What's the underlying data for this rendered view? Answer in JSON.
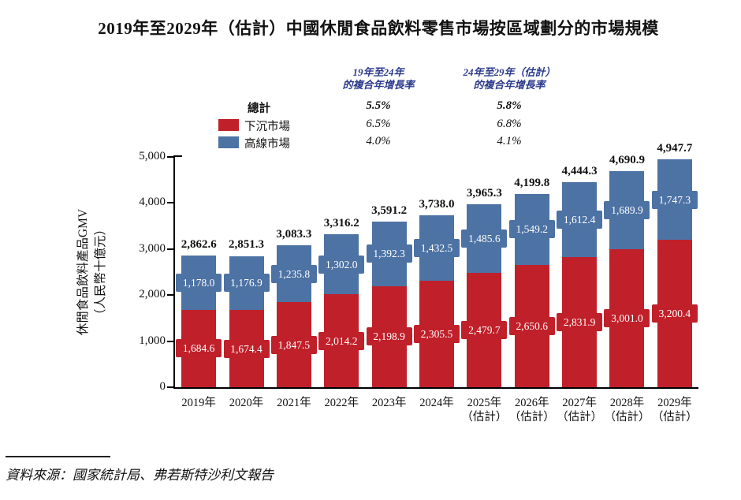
{
  "title": "2019年至2029年（估計）中國休閒食品飲料零售市場按區域劃分的市場規模",
  "colors": {
    "lower": "#C0202A",
    "upper": "#4D72A4",
    "header_navy": "#2B3A8C",
    "axis": "#000000"
  },
  "cagr_table": {
    "col1_header_line1": "19年至24年",
    "col1_header_line2": "的複合年增長率",
    "col2_header_line1": "24年至29年（估計）",
    "col2_header_line2": "的複合年增長率",
    "rows": [
      {
        "label": "總計",
        "cagr_19_24": "5.5%",
        "cagr_24_29": "5.8%"
      },
      {
        "label": "下沉市場",
        "cagr_19_24": "6.5%",
        "cagr_24_29": "6.8%"
      },
      {
        "label": "高線市場",
        "cagr_19_24": "4.0%",
        "cagr_24_29": "4.1%"
      }
    ]
  },
  "chart_data": {
    "type": "bar",
    "stacked": true,
    "title": "2019年至2029年（估計）中國休閒食品飲料零售市場按區域劃分的市場規模",
    "ylabel_line1": "休閒食品飲料產品GMV",
    "ylabel_line2": "（人民幣十億元）",
    "ylim": [
      0,
      5000
    ],
    "ytick_labels": [
      "5,000",
      "4,000",
      "3,000",
      "2,000",
      "1,000",
      "0"
    ],
    "grid": false,
    "legend_position": "top-left",
    "categories": [
      "2019年",
      "2020年",
      "2021年",
      "2022年",
      "2023年",
      "2024年",
      "2025年",
      "2026年",
      "2027年",
      "2028年",
      "2029年"
    ],
    "category_sublabels": [
      "",
      "",
      "",
      "",
      "",
      "",
      "（估計）",
      "（估計）",
      "（估計）",
      "（估計）",
      "（估計）"
    ],
    "series": [
      {
        "name": "下沉市場",
        "color_key": "lower",
        "values": [
          1684.6,
          1674.4,
          1847.5,
          2014.2,
          2198.9,
          2305.5,
          2479.7,
          2650.6,
          2831.9,
          3001.0,
          3200.4
        ],
        "labels": [
          "1,684.6",
          "1,674.4",
          "1,847.5",
          "2,014.2",
          "2,198.9",
          "2,305.5",
          "2,479.7",
          "2,650.6",
          "2,831.9",
          "3,001.0",
          "3,200.4"
        ]
      },
      {
        "name": "高線市場",
        "color_key": "upper",
        "values": [
          1178.0,
          1176.9,
          1235.8,
          1302.0,
          1392.3,
          1432.5,
          1485.6,
          1549.2,
          1612.4,
          1689.9,
          1747.3
        ],
        "labels": [
          "1,178.0",
          "1,176.9",
          "1,235.8",
          "1,302.0",
          "1,392.3",
          "1,432.5",
          "1,485.6",
          "1,549.2",
          "1,612.4",
          "1,689.9",
          "1,747.3"
        ]
      }
    ],
    "totals": [
      2862.6,
      2851.3,
      3083.3,
      3316.2,
      3591.2,
      3738.0,
      3965.3,
      4199.8,
      4444.3,
      4690.9,
      4947.7
    ],
    "total_labels": [
      "2,862.6",
      "2,851.3",
      "3,083.3",
      "3,316.2",
      "3,591.2",
      "3,738.0",
      "3,965.3",
      "4,199.8",
      "4,444.3",
      "4,690.9",
      "4,947.7"
    ]
  },
  "source": {
    "text": "資料來源：國家統計局、弗若斯特沙利文報告"
  }
}
